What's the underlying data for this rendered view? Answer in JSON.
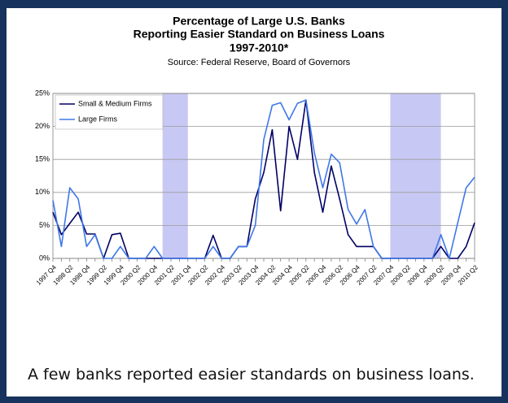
{
  "chart_data": {
    "type": "line",
    "title": [
      "Percentage of Large U.S. Banks",
      "Reporting Easier Standard on Business Loans",
      "1997-2010*"
    ],
    "subtitle": "Source: Federal Reserve, Board of Governors",
    "categories": [
      "1997 Q4",
      null,
      "1998 Q2",
      null,
      "1998 Q4",
      null,
      "1999 Q2",
      null,
      "1999 Q4",
      null,
      "2000 Q2",
      null,
      "2000 Q4",
      null,
      "2001 Q2",
      null,
      "2001 Q4",
      null,
      "2002 Q2",
      null,
      "2002 Q4",
      null,
      "2003 Q2",
      null,
      "2003 Q4",
      null,
      "2004 Q2",
      null,
      "2004 Q4",
      null,
      "2005 Q2",
      null,
      "2005 Q4",
      null,
      "2006 Q2",
      null,
      "2006 Q4",
      null,
      "2007 Q2",
      null,
      "2007 Q4",
      null,
      "2008 Q2",
      null,
      "2008 Q4",
      null,
      "2009 Q2",
      null,
      "2009 Q4",
      null,
      "2010 Q2"
    ],
    "series": [
      {
        "name": "Small & Medium Firms",
        "color": "#000066",
        "values": [
          7,
          3.6,
          5.3,
          7,
          3.7,
          3.7,
          0,
          3.6,
          3.8,
          0,
          0,
          0,
          0,
          0,
          0,
          0,
          0,
          0,
          0,
          3.5,
          0,
          0,
          1.8,
          1.8,
          9,
          13,
          19.5,
          7.2,
          20,
          15,
          24,
          13,
          7,
          14,
          9,
          3.6,
          1.8,
          1.8,
          1.8,
          0,
          0,
          0,
          0,
          0,
          0,
          0,
          1.8,
          0,
          0,
          1.8,
          5.4
        ]
      },
      {
        "name": "Large Firms",
        "color": "#3f78e8",
        "values": [
          8.8,
          1.8,
          10.7,
          9,
          1.8,
          3.6,
          0,
          0,
          1.8,
          0,
          0,
          0,
          1.8,
          0,
          0,
          0,
          0,
          0,
          0,
          1.8,
          0,
          0,
          1.8,
          1.8,
          5,
          18,
          23.2,
          23.6,
          21,
          23.5,
          24,
          16,
          10.7,
          15.8,
          14.5,
          7.4,
          5.2,
          7.4,
          1.8,
          0,
          0,
          0,
          0,
          0,
          0,
          0,
          3.6,
          0,
          5.4,
          10.7,
          12.3
        ]
      }
    ],
    "ylim": [
      0,
      25
    ],
    "yticks": [
      {
        "value": 0,
        "label": "0%"
      },
      {
        "value": 5,
        "label": "5%"
      },
      {
        "value": 10,
        "label": "10%"
      },
      {
        "value": 15,
        "label": "15%"
      },
      {
        "value": 20,
        "label": "20%"
      },
      {
        "value": 25,
        "label": "25%"
      }
    ],
    "grid": true,
    "legend": "top-left",
    "shaded": [
      [
        13,
        16
      ],
      [
        40,
        46
      ]
    ],
    "shade_color": "#c8c8f4"
  },
  "caption": "A few banks reported easier standards on business loans."
}
